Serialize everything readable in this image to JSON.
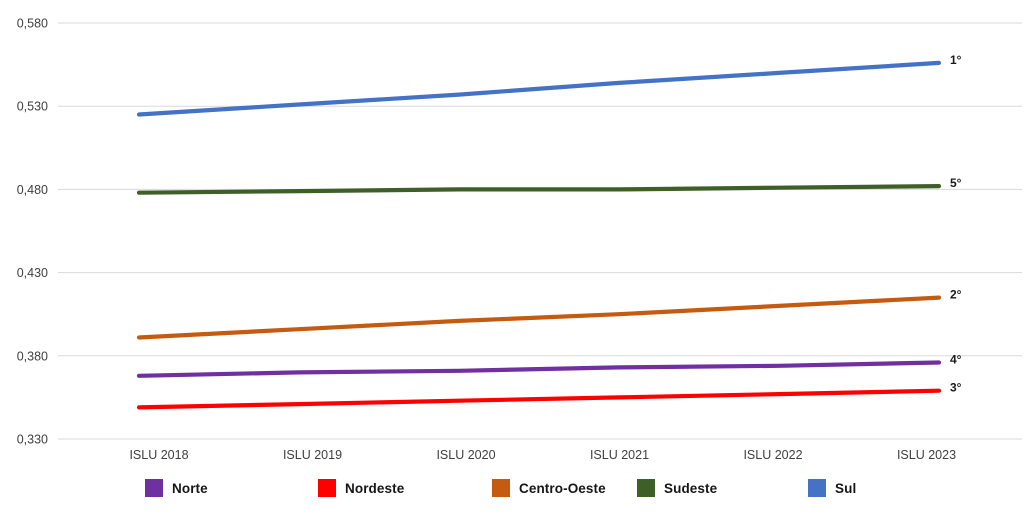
{
  "chart_data": {
    "type": "line",
    "title": "",
    "xlabel": "",
    "ylabel": "",
    "categories": [
      "ISLU 2018",
      "ISLU 2019",
      "ISLU 2020",
      "ISLU 2021",
      "ISLU 2022",
      "ISLU 2023"
    ],
    "y_ticks": [
      "0,580",
      "0,530",
      "0,480",
      "0,430",
      "0,380",
      "0,330"
    ],
    "ylim": [
      0.33,
      0.58
    ],
    "y_step": 0.05,
    "decimal_style": "comma",
    "grid": true,
    "legend_position": "bottom",
    "series": [
      {
        "name": "Norte",
        "color": "#7030A0",
        "rank_label": "4°",
        "values": [
          0.368,
          0.37,
          0.371,
          0.373,
          0.374,
          0.376
        ]
      },
      {
        "name": "Nordeste",
        "color": "#FF0000",
        "rank_label": "3°",
        "values": [
          0.349,
          0.351,
          0.353,
          0.355,
          0.357,
          0.359
        ]
      },
      {
        "name": "Centro-Oeste",
        "color": "#C55A11",
        "rank_label": "2°",
        "values": [
          0.391,
          0.396,
          0.401,
          0.405,
          0.41,
          0.415
        ]
      },
      {
        "name": "Sudeste",
        "color": "#3E5F28",
        "rank_label": "5°",
        "values": [
          0.478,
          0.479,
          0.48,
          0.48,
          0.481,
          0.482
        ]
      },
      {
        "name": "Sul",
        "color": "#4472C4",
        "rank_label": "1°",
        "values": [
          0.525,
          0.531,
          0.537,
          0.544,
          0.55,
          0.556
        ]
      }
    ],
    "colors": {
      "gridline": "#D9D9D9",
      "axis_text": "#3F3F3F",
      "annotation_text": "#1A1A1A"
    }
  }
}
